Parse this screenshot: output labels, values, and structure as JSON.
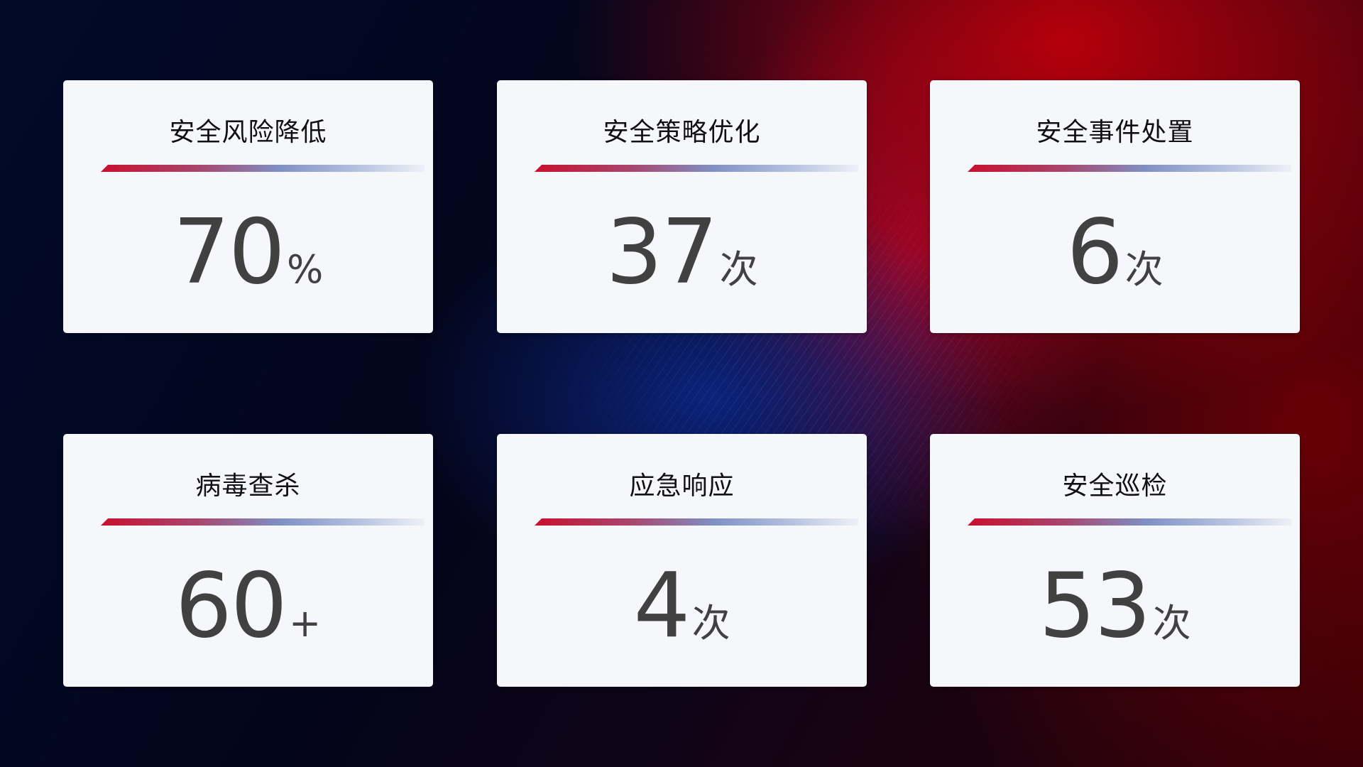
{
  "cards": [
    {
      "title": "安全风险降低",
      "value": "70",
      "unit": "%"
    },
    {
      "title": "安全策略优化",
      "value": "37",
      "unit": "次"
    },
    {
      "title": "安全事件处置",
      "value": "6",
      "unit": "次"
    },
    {
      "title": "病毒查杀",
      "value": "60",
      "unit": "+"
    },
    {
      "title": "应急响应",
      "value": "4",
      "unit": "次"
    },
    {
      "title": "安全巡检",
      "value": "53",
      "unit": "次"
    }
  ],
  "colors": {
    "accent_red": "#c8102e",
    "accent_blue": "#7f8fc4",
    "card_bg": "#f6f7fb",
    "value_text": "#414141"
  }
}
